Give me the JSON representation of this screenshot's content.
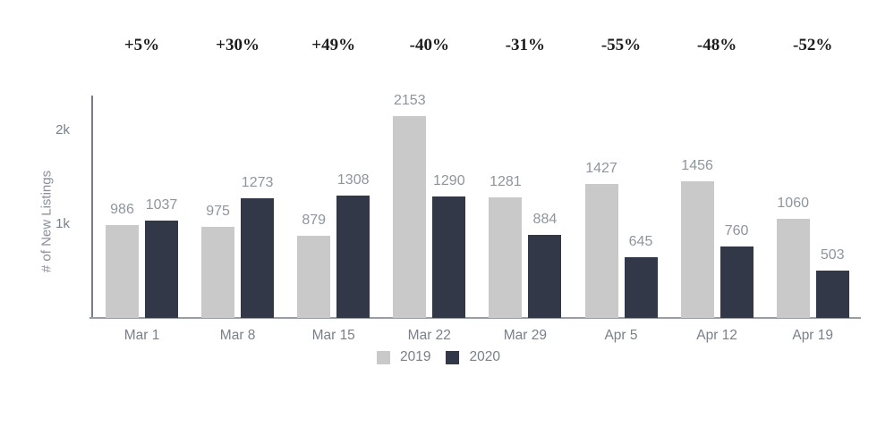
{
  "chart_data": {
    "type": "bar",
    "title": "",
    "categories": [
      "Mar 1",
      "Mar 8",
      "Mar 15",
      "Mar 22",
      "Mar 29",
      "Apr 5",
      "Apr 12",
      "Apr 19"
    ],
    "series": [
      {
        "name": "2019",
        "color": "#c9c9c9",
        "values": [
          986,
          975,
          879,
          2153,
          1281,
          1427,
          1456,
          1060
        ]
      },
      {
        "name": "2020",
        "color": "#333848",
        "values": [
          1037,
          1273,
          1308,
          1290,
          884,
          645,
          760,
          503
        ]
      }
    ],
    "percent_change_labels": [
      "+5%",
      "+30%",
      "+49%",
      "-40%",
      "-31%",
      "-55%",
      "-48%",
      "-52%"
    ],
    "xlabel": "",
    "ylabel": "# of New Listings",
    "yticks": [
      {
        "value": 2000,
        "label": "2k"
      },
      {
        "value": 1000,
        "label": "1k"
      }
    ],
    "ylim": [
      0,
      2370
    ],
    "grid": false,
    "legend_position": "bottom",
    "value_labels_shown": true
  },
  "colors": {
    "background": "#ffffff",
    "bar_2019": "#c9c9c9",
    "bar_2020": "#333848",
    "value_label_text": "#8f949d",
    "axis_label_text": "#79808a",
    "percent_label_text": "#1c1c1c",
    "x_axis_line": "#989ea5",
    "y_axis_line": "#757c87"
  }
}
